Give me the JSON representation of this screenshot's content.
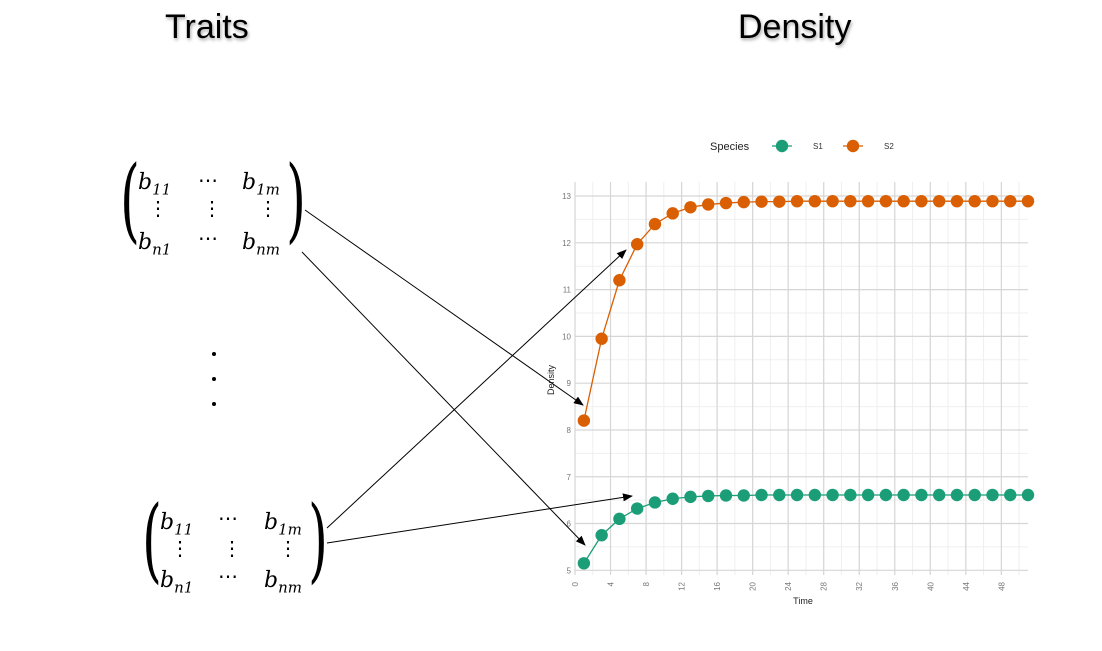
{
  "headings": {
    "traits": "Traits",
    "density": "Density"
  },
  "matrix": {
    "b11": "b",
    "b11_sub": "11",
    "b1m": "b",
    "b1m_sub": "1m",
    "bn1": "b",
    "bn1_sub": "n1",
    "bnm": "b",
    "bnm_sub": "nm",
    "hdots": "⋯",
    "vdots": "⋮"
  },
  "chart_data": {
    "type": "line",
    "title": "",
    "xlabel": "Time",
    "ylabel": "Density",
    "xlim": [
      0,
      51
    ],
    "ylim": [
      4.9,
      13.3
    ],
    "x_ticks": [
      0,
      4,
      8,
      12,
      16,
      20,
      24,
      28,
      32,
      36,
      40,
      44,
      48
    ],
    "y_ticks": [
      5,
      6,
      7,
      8,
      9,
      10,
      11,
      12,
      13
    ],
    "grid": true,
    "legend": {
      "title": "Species",
      "placement": "top"
    },
    "x": [
      1,
      3,
      5,
      7,
      9,
      11,
      13,
      15,
      17,
      19,
      21,
      23,
      25,
      27,
      29,
      31,
      33,
      35,
      37,
      39,
      41,
      43,
      45,
      47,
      49,
      51
    ],
    "series": [
      {
        "name": "S1",
        "color": "#1b9e77",
        "values": [
          5.15,
          5.75,
          6.1,
          6.32,
          6.45,
          6.53,
          6.57,
          6.59,
          6.6,
          6.6,
          6.61,
          6.61,
          6.61,
          6.61,
          6.61,
          6.61,
          6.61,
          6.61,
          6.61,
          6.61,
          6.61,
          6.61,
          6.61,
          6.61,
          6.61,
          6.61
        ]
      },
      {
        "name": "S2",
        "color": "#d95f02",
        "values": [
          8.2,
          9.95,
          11.2,
          11.97,
          12.4,
          12.63,
          12.76,
          12.82,
          12.85,
          12.87,
          12.88,
          12.88,
          12.89,
          12.89,
          12.89,
          12.89,
          12.89,
          12.89,
          12.89,
          12.89,
          12.89,
          12.89,
          12.89,
          12.89,
          12.89,
          12.89
        ]
      }
    ]
  }
}
